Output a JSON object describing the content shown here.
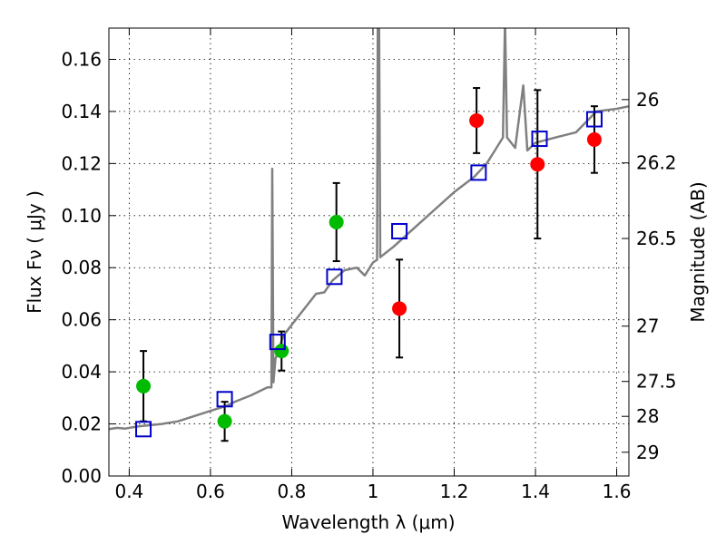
{
  "chart_data": {
    "type": "scatter",
    "xlabel": "Wavelength  λ (μm)",
    "ylabel": "Flux  Fν  ( μJy )",
    "y2label": "Magnitude (AB)",
    "xlim": [
      0.35,
      1.63
    ],
    "ylim": [
      0.0,
      0.172
    ],
    "grid": true,
    "x_ticks": [
      0.4,
      0.6,
      0.8,
      1.0,
      1.2,
      1.4,
      1.6
    ],
    "x_tick_labels": [
      "0.4",
      "0.6",
      "0.8",
      "1",
      "1.2",
      "1.4",
      "1.6"
    ],
    "y_ticks": [
      0.0,
      0.02,
      0.04,
      0.06,
      0.08,
      0.1,
      0.12,
      0.14,
      0.16
    ],
    "y_tick_labels": [
      "0.00",
      "0.02",
      "0.04",
      "0.06",
      "0.08",
      "0.10",
      "0.12",
      "0.14",
      "0.16"
    ],
    "mag_ticks": [
      26,
      26.2,
      26.5,
      27,
      27.5,
      28,
      29
    ],
    "mag_tick_labels": [
      "26",
      "26.2",
      "26.5",
      "27",
      "27.5",
      "28",
      "29"
    ],
    "colors": {
      "green": "#00bb00",
      "red": "#ff0000",
      "model": "#0000cc",
      "spectrum": "#808080"
    },
    "series": [
      {
        "color": "green",
        "marker": "circle",
        "points": [
          {
            "x": 0.435,
            "y": 0.0345,
            "err": 0.0135
          },
          {
            "x": 0.635,
            "y": 0.021,
            "err": 0.0075
          },
          {
            "x": 0.775,
            "y": 0.048,
            "err": 0.0075
          },
          {
            "x": 0.91,
            "y": 0.0975,
            "err": 0.015
          }
        ]
      },
      {
        "color": "red",
        "marker": "circle",
        "points": [
          {
            "x": 1.065,
            "y": 0.0643,
            "err": 0.0188
          },
          {
            "x": 1.255,
            "y": 0.1365,
            "err": 0.0125
          },
          {
            "x": 1.405,
            "y": 0.1197,
            "err": 0.0285
          },
          {
            "x": 1.545,
            "y": 0.1292,
            "err": 0.0128
          }
        ]
      },
      {
        "color": "model",
        "marker": "open-square",
        "points": [
          {
            "x": 0.435,
            "y": 0.018
          },
          {
            "x": 0.635,
            "y": 0.0295
          },
          {
            "x": 0.765,
            "y": 0.0515
          },
          {
            "x": 0.905,
            "y": 0.0765
          },
          {
            "x": 1.065,
            "y": 0.094
          },
          {
            "x": 1.26,
            "y": 0.1165
          },
          {
            "x": 1.41,
            "y": 0.1295
          },
          {
            "x": 1.545,
            "y": 0.137
          }
        ]
      },
      {
        "color": "spectrum",
        "marker": "line",
        "points": [
          {
            "x": 0.35,
            "y": 0.018
          },
          {
            "x": 0.37,
            "y": 0.0185
          },
          {
            "x": 0.39,
            "y": 0.0182
          },
          {
            "x": 0.42,
            "y": 0.019
          },
          {
            "x": 0.45,
            "y": 0.0195
          },
          {
            "x": 0.48,
            "y": 0.02
          },
          {
            "x": 0.52,
            "y": 0.021
          },
          {
            "x": 0.56,
            "y": 0.023
          },
          {
            "x": 0.6,
            "y": 0.025
          },
          {
            "x": 0.64,
            "y": 0.027
          },
          {
            "x": 0.66,
            "y": 0.0285
          },
          {
            "x": 0.7,
            "y": 0.031
          },
          {
            "x": 0.74,
            "y": 0.034
          },
          {
            "x": 0.75,
            "y": 0.034
          },
          {
            "x": 0.752,
            "y": 0.118
          },
          {
            "x": 0.755,
            "y": 0.036
          },
          {
            "x": 0.76,
            "y": 0.045
          },
          {
            "x": 0.78,
            "y": 0.054
          },
          {
            "x": 0.8,
            "y": 0.058
          },
          {
            "x": 0.82,
            "y": 0.062
          },
          {
            "x": 0.84,
            "y": 0.066
          },
          {
            "x": 0.86,
            "y": 0.07
          },
          {
            "x": 0.88,
            "y": 0.0705
          },
          {
            "x": 0.9,
            "y": 0.075
          },
          {
            "x": 0.93,
            "y": 0.079
          },
          {
            "x": 0.96,
            "y": 0.08
          },
          {
            "x": 0.98,
            "y": 0.077
          },
          {
            "x": 1.0,
            "y": 0.082
          },
          {
            "x": 1.01,
            "y": 0.083
          },
          {
            "x": 1.012,
            "y": 0.175
          },
          {
            "x": 1.015,
            "y": 0.175
          },
          {
            "x": 1.018,
            "y": 0.084
          },
          {
            "x": 1.05,
            "y": 0.088
          },
          {
            "x": 1.1,
            "y": 0.095
          },
          {
            "x": 1.15,
            "y": 0.102
          },
          {
            "x": 1.2,
            "y": 0.109
          },
          {
            "x": 1.25,
            "y": 0.115
          },
          {
            "x": 1.28,
            "y": 0.12
          },
          {
            "x": 1.3,
            "y": 0.125
          },
          {
            "x": 1.32,
            "y": 0.13
          },
          {
            "x": 1.325,
            "y": 0.175
          },
          {
            "x": 1.33,
            "y": 0.13
          },
          {
            "x": 1.35,
            "y": 0.126
          },
          {
            "x": 1.37,
            "y": 0.15
          },
          {
            "x": 1.38,
            "y": 0.125
          },
          {
            "x": 1.4,
            "y": 0.128
          },
          {
            "x": 1.45,
            "y": 0.13
          },
          {
            "x": 1.5,
            "y": 0.132
          },
          {
            "x": 1.55,
            "y": 0.14
          },
          {
            "x": 1.6,
            "y": 0.141
          },
          {
            "x": 1.63,
            "y": 0.142
          }
        ]
      }
    ]
  }
}
